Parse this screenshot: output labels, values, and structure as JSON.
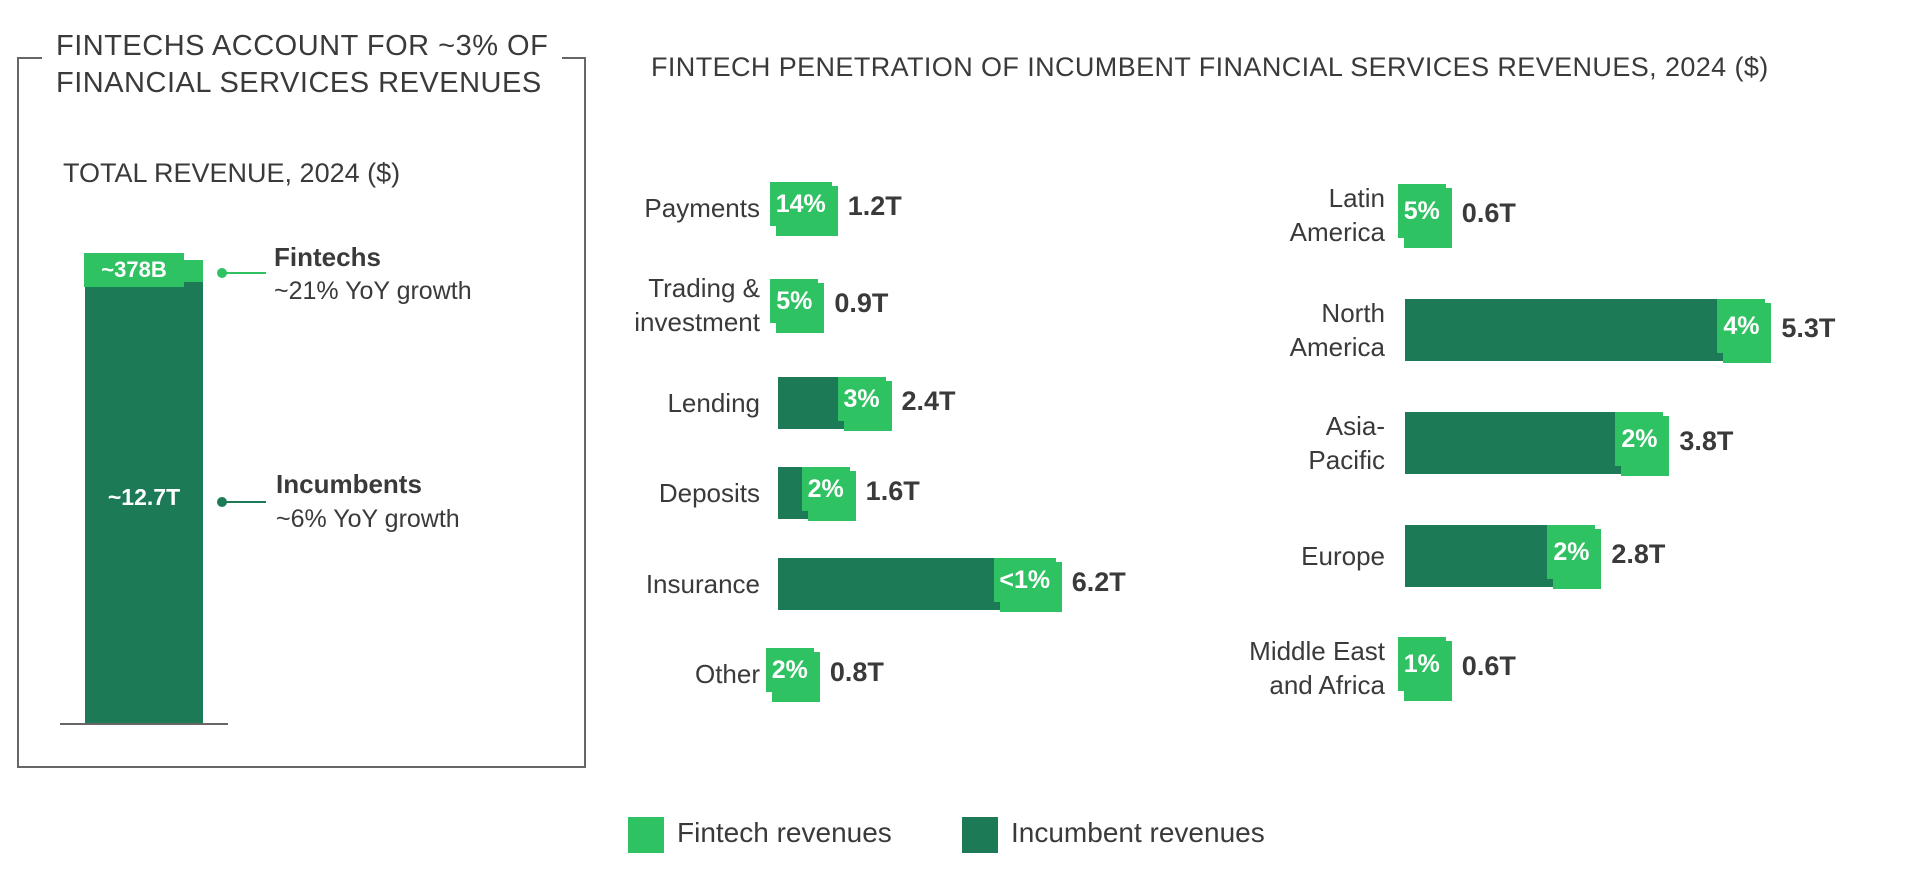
{
  "colors": {
    "fintech": "#2fc263",
    "incumbent": "#1d7a56"
  },
  "left_panel": {
    "title_line1": "FINTECHS ACCOUNT FOR ~3% OF",
    "title_line2": "FINANCIAL SERVICES REVENUES",
    "subtitle": "TOTAL REVENUE, 2024 ($)",
    "fintech_value": "~378B",
    "incumbent_value": "~12.7T",
    "fintech_name": "Fintechs",
    "fintech_growth": "~21% YoY growth",
    "incumbent_name": "Incumbents",
    "incumbent_growth": "~6% YoY growth"
  },
  "right_panel": {
    "title": "FINTECH PENETRATION OF INCUMBENT FINANCIAL SERVICES REVENUES, 2024 ($)"
  },
  "legend": {
    "fintech": "Fintech revenues",
    "incumbent": "Incumbent revenues"
  },
  "chart_data": [
    {
      "type": "bar",
      "title": "TOTAL REVENUE, 2024 ($)",
      "categories": [
        "Total"
      ],
      "series": [
        {
          "name": "Fintechs",
          "values": [
            0.378
          ],
          "label": "~378B"
        },
        {
          "name": "Incumbents",
          "values": [
            12.7
          ],
          "label": "~12.7T"
        }
      ]
    },
    {
      "type": "bar",
      "orientation": "horizontal",
      "categories": [
        {
          "line1": "Payments",
          "line2": ""
        },
        {
          "line1": "Trading &",
          "line2": "investment"
        },
        {
          "line1": "Lending",
          "line2": ""
        },
        {
          "line1": "Deposits",
          "line2": ""
        },
        {
          "line1": "Insurance",
          "line2": ""
        },
        {
          "line1": "Other",
          "line2": ""
        }
      ],
      "values": [
        1.2,
        0.9,
        2.4,
        1.6,
        6.2,
        0.8
      ],
      "value_labels": [
        "1.2T",
        "0.9T",
        "2.4T",
        "1.6T",
        "6.2T",
        "0.8T"
      ],
      "fintech_share": [
        14,
        5,
        3,
        2,
        1,
        2
      ],
      "share_labels": [
        "14%",
        "5%",
        "3%",
        "2%",
        "<1%",
        "2%"
      ]
    },
    {
      "type": "bar",
      "orientation": "horizontal",
      "categories": [
        {
          "line1": "Latin",
          "line2": "America"
        },
        {
          "line1": "North",
          "line2": "America"
        },
        {
          "line1": "Asia-",
          "line2": "Pacific"
        },
        {
          "line1": "Europe",
          "line2": ""
        },
        {
          "line1": "Middle East",
          "line2": "and Africa"
        }
      ],
      "values": [
        0.6,
        5.3,
        3.8,
        2.8,
        0.6
      ],
      "value_labels": [
        "0.6T",
        "5.3T",
        "3.8T",
        "2.8T",
        "0.6T"
      ],
      "fintech_share": [
        5,
        4,
        2,
        2,
        1
      ],
      "share_labels": [
        "5%",
        "4%",
        "2%",
        "2%",
        "1%"
      ]
    }
  ]
}
